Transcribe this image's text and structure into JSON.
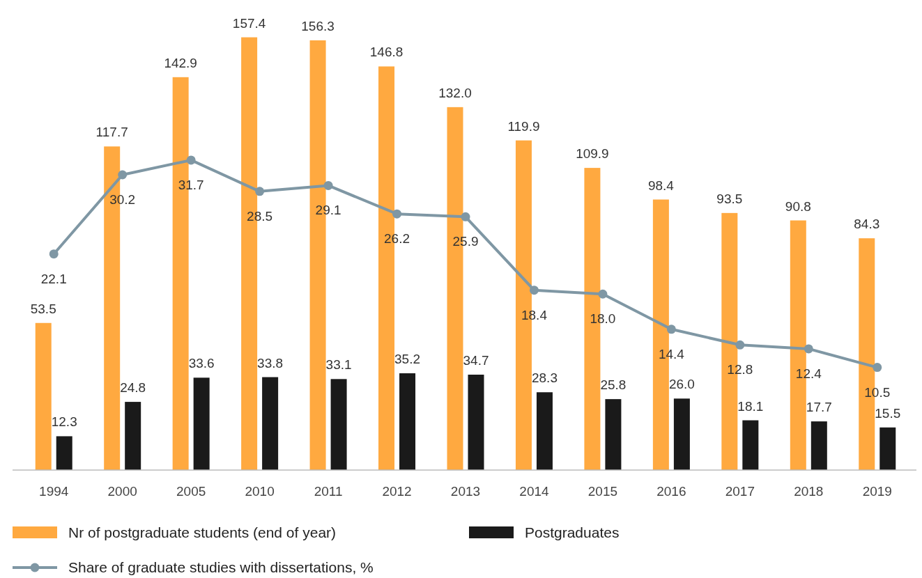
{
  "chart_data": {
    "type": "bar",
    "categories": [
      "1994",
      "2000",
      "2005",
      "2010",
      "2011",
      "2012",
      "2013",
      "2014",
      "2015",
      "2016",
      "2017",
      "2018",
      "2019"
    ],
    "series": [
      {
        "name": "Nr of postgraduate students (end of year)",
        "color": "#ffa940",
        "values": [
          53.5,
          117.7,
          142.9,
          157.4,
          156.3,
          146.8,
          132.0,
          119.9,
          109.9,
          98.4,
          93.5,
          90.8,
          84.3
        ],
        "value_labels": [
          "53.5",
          "117.7",
          "142.9",
          "157.4",
          "156.3",
          "146.8",
          "132.0",
          "119.9",
          "109.9",
          "98.4",
          "93.5",
          "90.8",
          "84.3"
        ]
      },
      {
        "name": "Postgraduates",
        "color": "#1a1a1a",
        "values": [
          12.3,
          24.8,
          33.6,
          33.8,
          33.1,
          35.2,
          34.7,
          28.3,
          25.8,
          26.0,
          18.1,
          17.7,
          15.5
        ],
        "value_labels": [
          "12.3",
          "24.8",
          "33.6",
          "33.8",
          "33.1",
          "35.2",
          "34.7",
          "28.3",
          "25.8",
          "26.0",
          "18.1",
          "17.7",
          "15.5"
        ]
      },
      {
        "name": "Share of graduate studies with dissertations, %",
        "type": "line",
        "axis": "y2",
        "color": "#7f97a4",
        "values": [
          22.1,
          30.2,
          31.7,
          28.5,
          29.1,
          26.2,
          25.9,
          18.4,
          18.0,
          14.4,
          12.8,
          12.4,
          10.5
        ],
        "value_labels": [
          "22.1",
          "30.2",
          "31.7",
          "28.5",
          "29.1",
          "26.2",
          "25.9",
          "18.4",
          "18.0",
          "14.4",
          "12.8",
          "12.4",
          "10.5"
        ]
      }
    ],
    "legend": "bottom",
    "marker": "circle",
    "tick_labels": "x"
  }
}
